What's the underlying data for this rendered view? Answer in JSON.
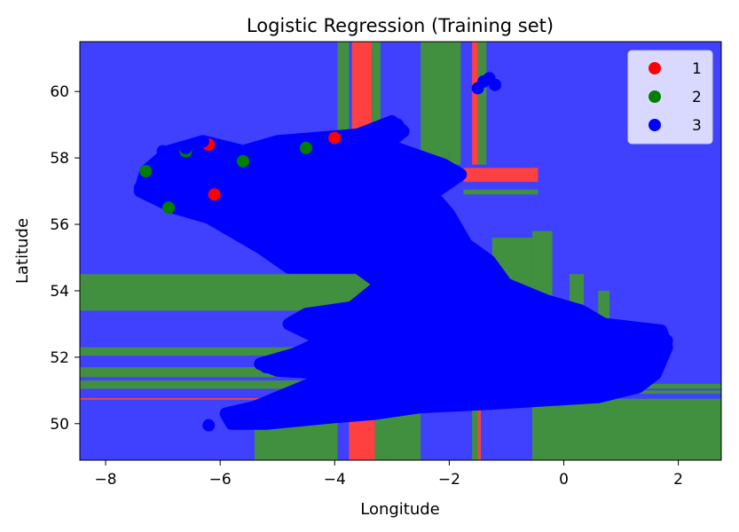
{
  "chart_data": {
    "type": "scatter",
    "title": "Logistic Regression (Training set)",
    "xlabel": "Longitude",
    "ylabel": "Latitude",
    "xlim": [
      -8.45,
      2.75
    ],
    "ylim": [
      48.9,
      61.5
    ],
    "x_ticks": [
      -8,
      -6,
      -4,
      -2,
      0,
      2
    ],
    "x_tick_labels": [
      "−8",
      "−6",
      "−4",
      "−2",
      "0",
      "2"
    ],
    "y_ticks": [
      50,
      52,
      54,
      56,
      58,
      60
    ],
    "y_tick_labels": [
      "50",
      "52",
      "54",
      "56",
      "58",
      "60"
    ],
    "grid": false,
    "legend_position": "top-right",
    "class_colors": {
      "1": "#ff0000",
      "2": "#008000",
      "3": "#0000ff"
    },
    "region_colors": {
      "1": "#ff4040",
      "2": "#409040",
      "3": "#4040ff"
    },
    "series": [
      {
        "name": "1",
        "color": "#ff0000",
        "points": [
          [
            -6.2,
            58.4
          ],
          [
            -4.0,
            58.6
          ],
          [
            -6.1,
            56.9
          ]
        ]
      },
      {
        "name": "2",
        "color": "#008000",
        "points": [
          [
            -6.9,
            56.5
          ],
          [
            -7.3,
            57.6
          ],
          [
            -4.5,
            58.3
          ],
          [
            -5.6,
            57.9
          ],
          [
            -6.6,
            58.2
          ]
        ]
      },
      {
        "name": "3",
        "color": "#0000ff",
        "points": [
          [
            -1.4,
            60.3
          ],
          [
            -1.2,
            60.2
          ],
          [
            -1.5,
            60.1
          ],
          [
            -1.3,
            60.4
          ],
          [
            -7.4,
            57.1
          ],
          [
            -7.0,
            58.2
          ],
          [
            -6.6,
            58.3
          ],
          [
            -6.3,
            58.5
          ],
          [
            -5.9,
            57.9
          ],
          [
            -6.7,
            57.4
          ],
          [
            -6.2,
            49.95
          ],
          [
            -5.7,
            50.1
          ],
          [
            -5.2,
            50.05
          ],
          [
            -4.7,
            50.2
          ],
          [
            -4.0,
            50.3
          ],
          [
            -3.5,
            50.35
          ],
          [
            -2.5,
            50.5
          ],
          [
            -1.5,
            50.6
          ],
          [
            -0.5,
            50.8
          ],
          [
            0.5,
            51.0
          ],
          [
            1.4,
            51.3
          ],
          [
            1.8,
            52.5
          ],
          [
            -3.3,
            58.9
          ],
          [
            -2.9,
            59.0
          ],
          [
            -3.6,
            58.5
          ],
          [
            -5.0,
            58.4
          ],
          [
            -5.3,
            58.0
          ],
          [
            -6.0,
            56.3
          ],
          [
            -5.5,
            55.6
          ],
          [
            -4.9,
            54.9
          ],
          [
            -3.3,
            54.7
          ],
          [
            -4.0,
            53.3
          ],
          [
            -4.5,
            52.8
          ],
          [
            -5.1,
            51.8
          ],
          [
            -4.2,
            52.5
          ],
          [
            -4.0,
            52.1
          ],
          [
            -5.2,
            51.7
          ],
          [
            -4.9,
            51.9
          ]
        ]
      }
    ],
    "regions": [
      {
        "class": "2",
        "x": [
          -3.95,
          -3.75
        ],
        "y": [
          58.6,
          61.5
        ]
      },
      {
        "class": "1",
        "x": [
          -3.7,
          -3.35
        ],
        "y": [
          58.7,
          61.5
        ]
      },
      {
        "class": "2",
        "x": [
          -3.35,
          -3.2
        ],
        "y": [
          58.7,
          61.5
        ]
      },
      {
        "class": "2",
        "x": [
          -2.5,
          -2.0
        ],
        "y": [
          57.8,
          61.5
        ]
      },
      {
        "class": "2",
        "x": [
          -2.0,
          -1.8
        ],
        "y": [
          57.8,
          61.5
        ]
      },
      {
        "class": "1",
        "x": [
          -1.6,
          -1.5
        ],
        "y": [
          57.8,
          61.5
        ]
      },
      {
        "class": "2",
        "x": [
          -1.5,
          -1.35
        ],
        "y": [
          57.8,
          61.5
        ]
      },
      {
        "class": "1",
        "x": [
          -1.75,
          -0.45
        ],
        "y": [
          57.28,
          57.7
        ]
      },
      {
        "class": "2",
        "x": [
          -1.75,
          -0.45
        ],
        "y": [
          56.9,
          57.05
        ]
      },
      {
        "class": "2",
        "x": [
          -8.45,
          -3.2
        ],
        "y": [
          53.4,
          54.5
        ]
      },
      {
        "class": "2",
        "x": [
          -8.45,
          -3.2
        ],
        "y": [
          52.05,
          52.3
        ]
      },
      {
        "class": "2",
        "x": [
          -8.45,
          -3.5
        ],
        "y": [
          51.4,
          51.7
        ]
      },
      {
        "class": "2",
        "x": [
          -8.45,
          -3.5
        ],
        "y": [
          51.05,
          51.3
        ]
      },
      {
        "class": "1",
        "x": [
          -8.45,
          -4.9
        ],
        "y": [
          50.72,
          50.77
        ]
      },
      {
        "class": "2",
        "x": [
          -5.4,
          -3.95
        ],
        "y": [
          48.9,
          50.2
        ]
      },
      {
        "class": "1",
        "x": [
          -3.75,
          -3.3
        ],
        "y": [
          48.9,
          50.4
        ]
      },
      {
        "class": "2",
        "x": [
          -3.3,
          -2.5
        ],
        "y": [
          48.9,
          50.45
        ]
      },
      {
        "class": "2",
        "x": [
          -1.6,
          -1.45
        ],
        "y": [
          48.9,
          50.6
        ]
      },
      {
        "class": "1",
        "x": [
          -1.5,
          -1.45
        ],
        "y": [
          48.9,
          50.6
        ]
      },
      {
        "class": "2",
        "x": [
          -0.55,
          2.75
        ],
        "y": [
          48.9,
          50.75
        ]
      },
      {
        "class": "2",
        "x": [
          -0.55,
          2.75
        ],
        "y": [
          50.9,
          51.0
        ]
      },
      {
        "class": "2",
        "x": [
          0.3,
          2.75
        ],
        "y": [
          51.05,
          51.2
        ]
      },
      {
        "class": "2",
        "x": [
          -1.25,
          -0.55
        ],
        "y": [
          54.0,
          55.6
        ]
      },
      {
        "class": "2",
        "x": [
          -0.55,
          -0.2
        ],
        "y": [
          52.6,
          55.8
        ]
      },
      {
        "class": "2",
        "x": [
          0.1,
          0.35
        ],
        "y": [
          52.9,
          54.5
        ]
      },
      {
        "class": "2",
        "x": [
          0.6,
          0.8
        ],
        "y": [
          52.8,
          54.0
        ]
      },
      {
        "class": "2",
        "x": [
          -5.6,
          -5.4
        ],
        "y": [
          56.8,
          57.3
        ]
      },
      {
        "class": "2",
        "x": [
          -4.1,
          -3.8
        ],
        "y": [
          57.3,
          58.3
        ]
      }
    ],
    "blob": [
      [
        -7.4,
        57.0
      ],
      [
        -7.3,
        57.6
      ],
      [
        -6.9,
        58.2
      ],
      [
        -6.3,
        58.5
      ],
      [
        -5.6,
        58.2
      ],
      [
        -5.0,
        58.5
      ],
      [
        -3.6,
        58.7
      ],
      [
        -3.0,
        59.1
      ],
      [
        -2.8,
        58.8
      ],
      [
        -3.1,
        58.4
      ],
      [
        -2.1,
        57.8
      ],
      [
        -1.8,
        57.5
      ],
      [
        -2.3,
        56.9
      ],
      [
        -2.0,
        56.3
      ],
      [
        -1.7,
        55.4
      ],
      [
        -1.3,
        54.9
      ],
      [
        -1.0,
        54.2
      ],
      [
        -0.3,
        53.7
      ],
      [
        0.3,
        53.4
      ],
      [
        0.7,
        53.0
      ],
      [
        1.7,
        52.8
      ],
      [
        1.8,
        52.3
      ],
      [
        1.6,
        51.5
      ],
      [
        1.3,
        51.1
      ],
      [
        0.6,
        50.8
      ],
      [
        -0.4,
        50.7
      ],
      [
        -1.3,
        50.6
      ],
      [
        -2.5,
        50.5
      ],
      [
        -3.3,
        50.3
      ],
      [
        -4.0,
        50.2
      ],
      [
        -4.6,
        50.1
      ],
      [
        -5.2,
        50.0
      ],
      [
        -5.8,
        50.0
      ],
      [
        -5.9,
        50.3
      ],
      [
        -5.4,
        50.5
      ],
      [
        -4.7,
        51.0
      ],
      [
        -4.0,
        51.5
      ],
      [
        -5.0,
        51.6
      ],
      [
        -5.3,
        51.8
      ],
      [
        -4.7,
        52.1
      ],
      [
        -4.2,
        52.5
      ],
      [
        -4.8,
        53.0
      ],
      [
        -4.5,
        53.3
      ],
      [
        -3.7,
        53.5
      ],
      [
        -3.2,
        54.2
      ],
      [
        -3.6,
        54.7
      ],
      [
        -4.8,
        54.7
      ],
      [
        -5.3,
        55.3
      ],
      [
        -5.7,
        55.7
      ],
      [
        -6.2,
        56.2
      ],
      [
        -6.8,
        56.5
      ]
    ]
  }
}
